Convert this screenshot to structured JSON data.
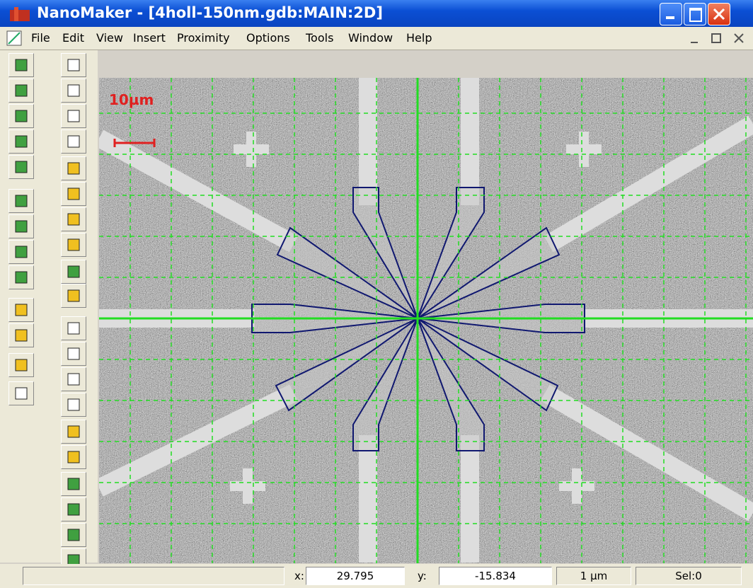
{
  "window": {
    "title": "NanoMaker - [4holl-150nm.gdb:MAIN:2D]"
  },
  "menu": {
    "items": [
      "File",
      "Edit",
      "View",
      "Insert",
      "Proximity",
      "Options",
      "Tools",
      "Window",
      "Help"
    ]
  },
  "canvas": {
    "scale_label": "10µm"
  },
  "status": {
    "x_label": "x:",
    "x_value": "29.795",
    "y_label": "y:",
    "y_value": "-15.834",
    "unit": "1 µm",
    "selection": "Sel:0"
  }
}
